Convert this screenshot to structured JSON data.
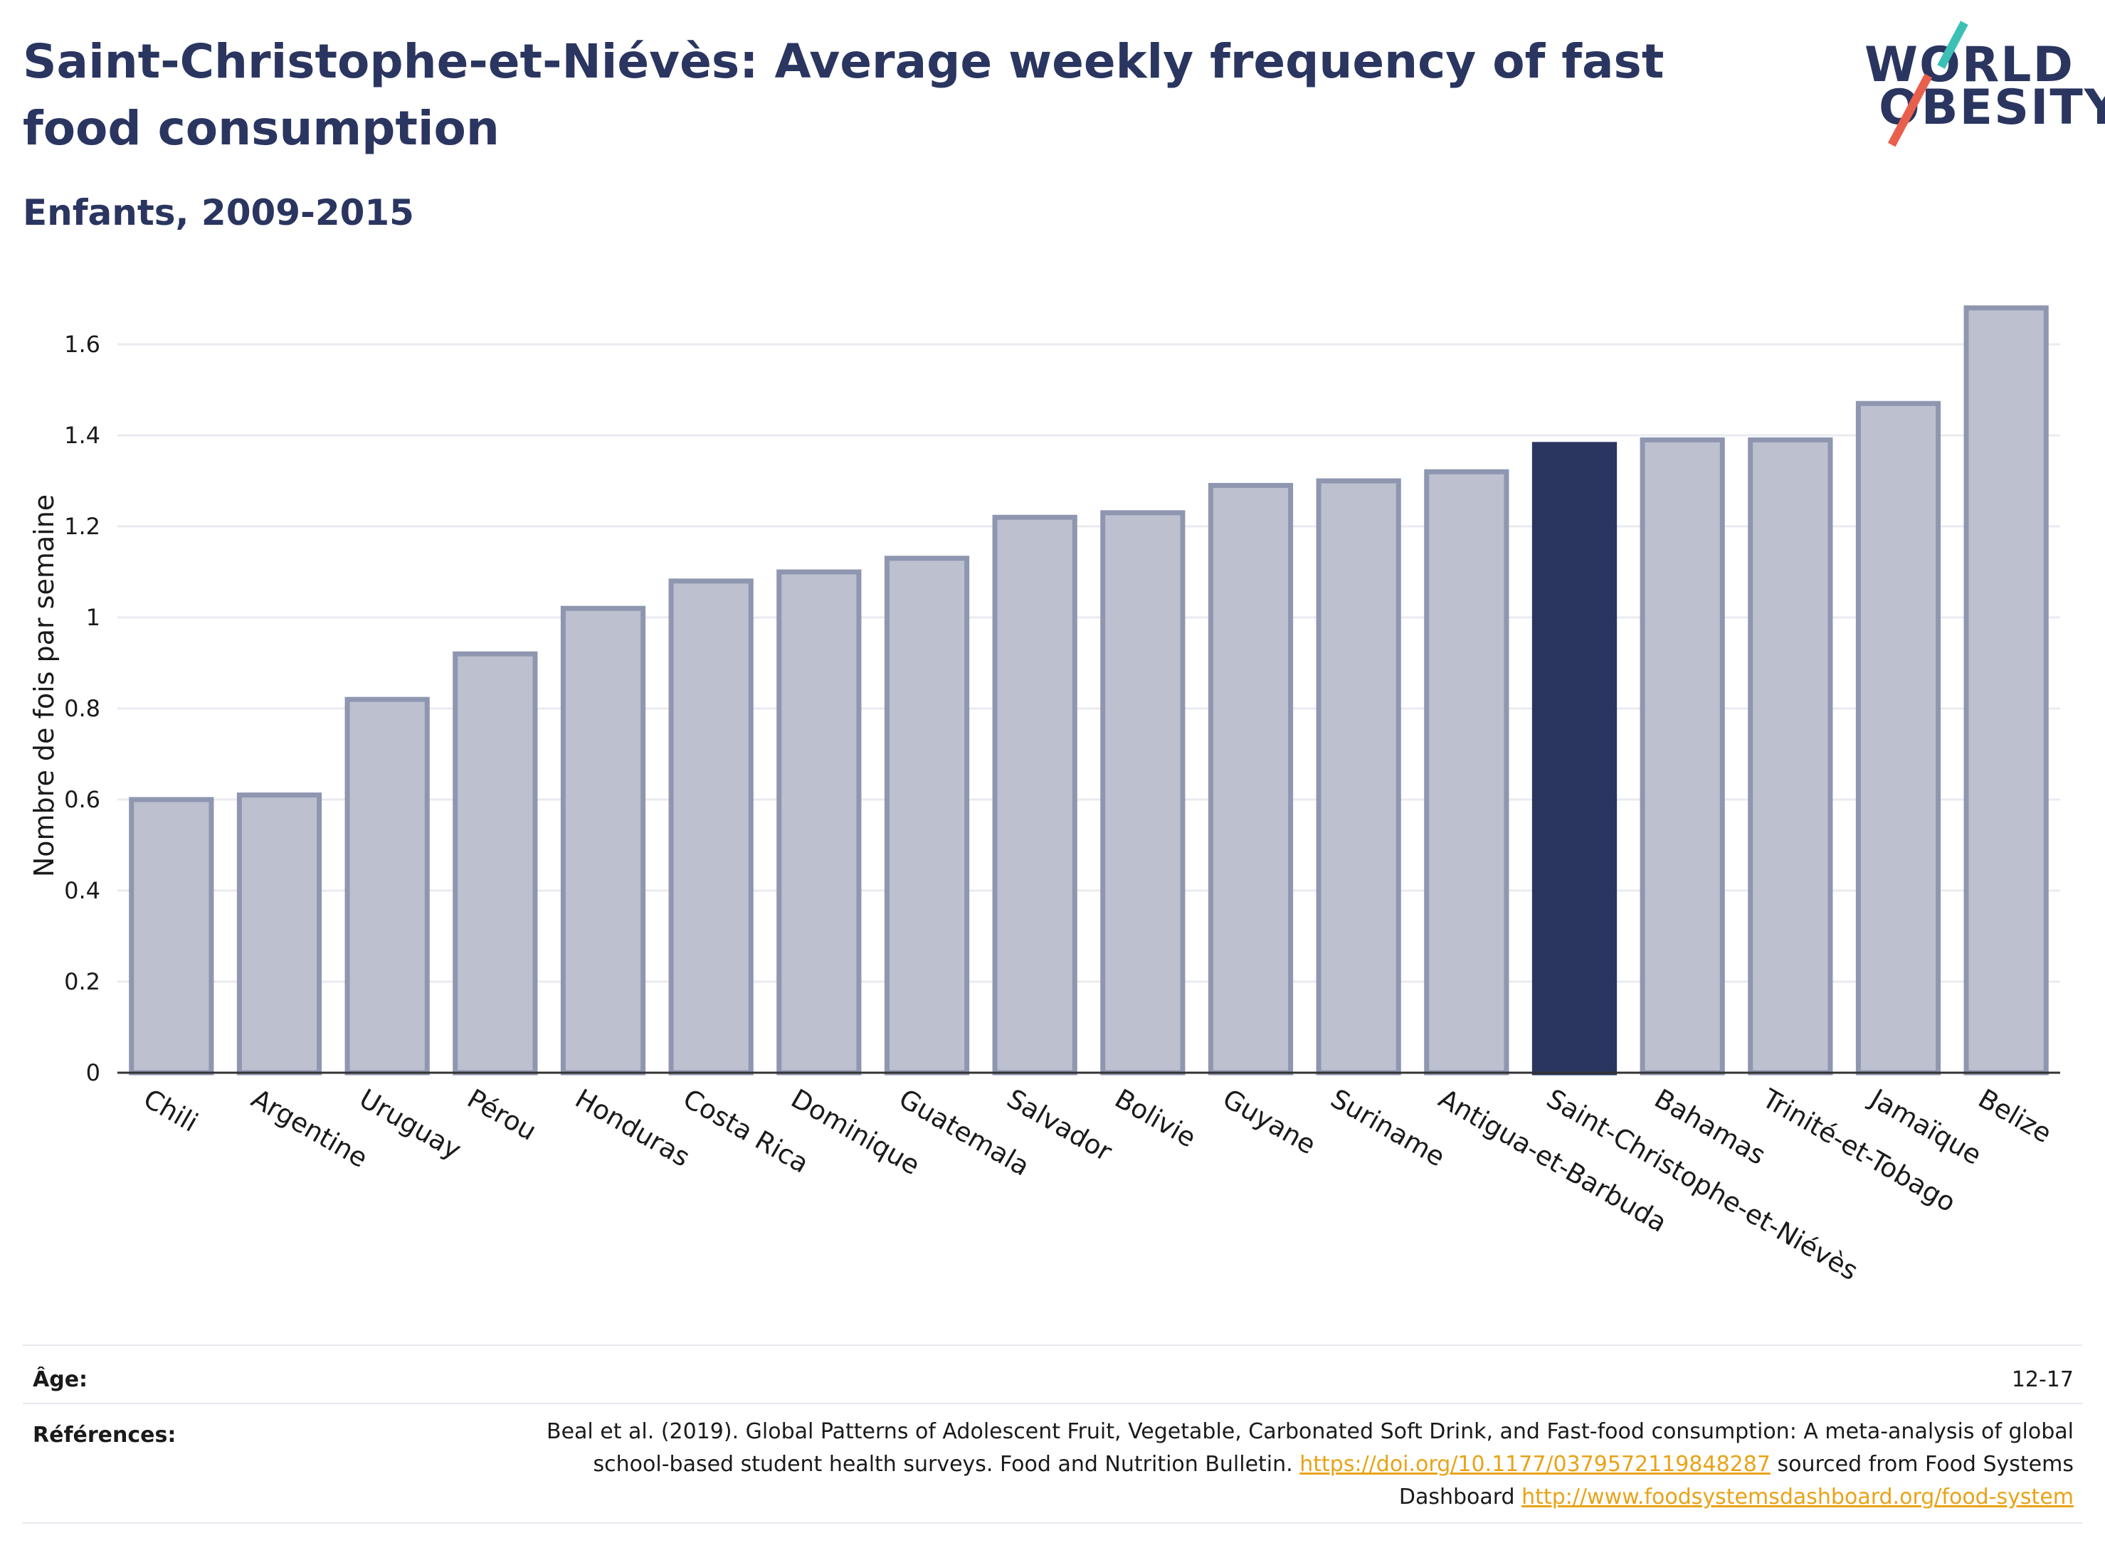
{
  "header": {
    "title": "Saint-Christophe-et-Niévès: Average weekly frequency of fast food consumption",
    "subtitle": "Enfants, 2009-2015"
  },
  "logo": {
    "line1": "WORLD",
    "line2": "OBESITY"
  },
  "chart_data": {
    "type": "bar",
    "ylabel": "Nombre de fois par semaine",
    "ylim": [
      0,
      1.7
    ],
    "yticks": [
      0,
      0.2,
      0.4,
      0.6,
      0.8,
      1,
      1.2,
      1.4,
      1.6
    ],
    "ytick_labels": [
      "0",
      "0.2",
      "0.4",
      "0.6",
      "0.8",
      "1",
      "1.2",
      "1.4",
      "1.6"
    ],
    "categories": [
      "Chili",
      "Argentine",
      "Uruguay",
      "Pérou",
      "Honduras",
      "Costa Rica",
      "Dominique",
      "Guatemala",
      "Salvador",
      "Bolivie",
      "Guyane",
      "Suriname",
      "Antigua-et-Barbuda",
      "Saint-Christophe-et-Niévès",
      "Bahamas",
      "Trinité-et-Tobago",
      "Jamaïque",
      "Belize"
    ],
    "values": [
      0.6,
      0.61,
      0.82,
      0.92,
      1.02,
      1.08,
      1.1,
      1.13,
      1.22,
      1.23,
      1.29,
      1.3,
      1.32,
      1.38,
      1.39,
      1.39,
      1.47,
      1.68
    ],
    "highlight": "Saint-Christophe-et-Niévès",
    "grid": true,
    "colors": {
      "bar": "#bcc0cf",
      "bar_border": "#8f96b0",
      "highlight": "#2a3560"
    }
  },
  "info": {
    "age_label": "Âge:",
    "age_value": "12-17",
    "refs_label": "Références:",
    "refs_text_1": "Beal et al. (2019). Global Patterns of Adolescent Fruit, Vegetable, Carbonated Soft Drink, and Fast-food consumption: A meta-analysis of global school-based student health surveys. Food and Nutrition Bulletin.",
    "refs_link_1": "https://doi.org/10.1177/0379572119848287",
    "refs_text_2": "sourced from Food Systems Dashboard",
    "refs_link_2": "http://www.foodsystemsdashboard.org/food-system"
  }
}
